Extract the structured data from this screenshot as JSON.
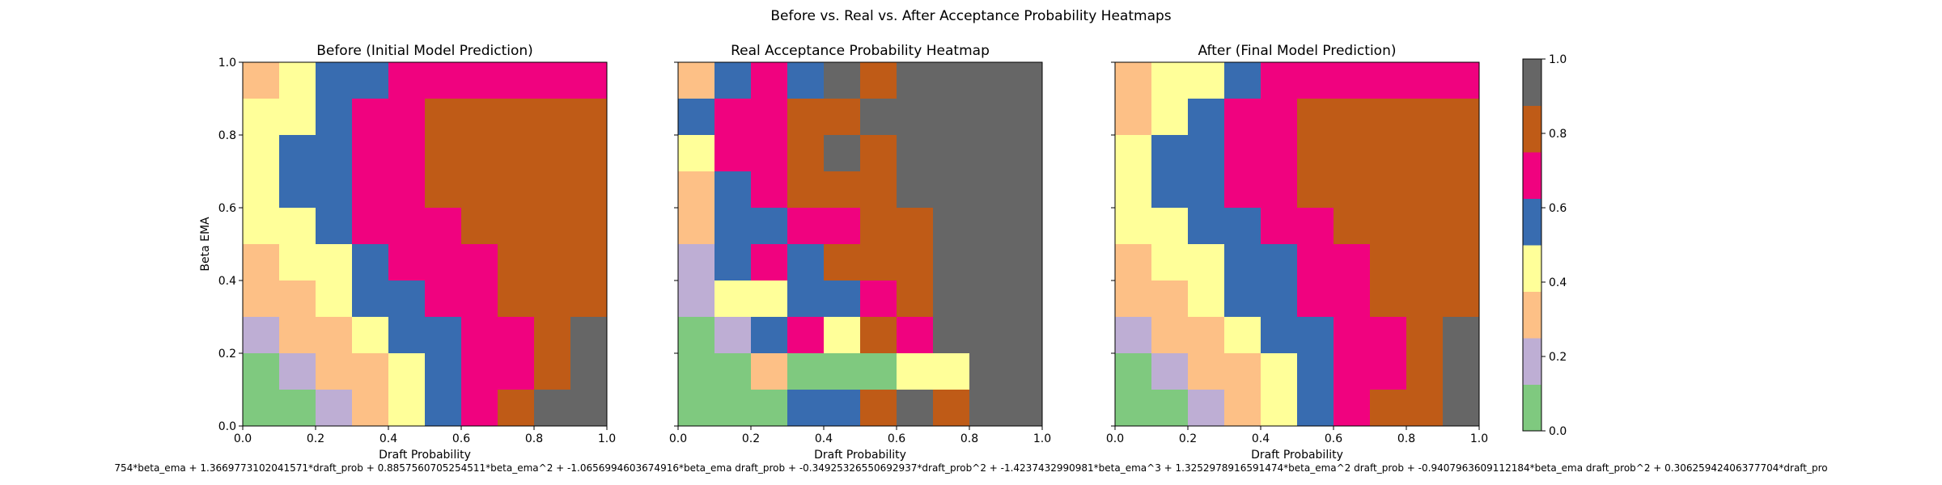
{
  "suptitle": "Before vs. Real vs. After Acceptance Probability Heatmaps",
  "formula_text": "754*beta_ema + 1.3669773102041571*draft_prob + 0.8857560705254511*beta_ema^2 + -1.0656994603674916*beta_ema draft_prob + -0.34925326550692937*draft_prob^2 + -1.4237432990981*beta_ema^3 + 1.3252978916591474*beta_ema^2 draft_prob + -0.9407963609112184*beta_ema draft_prob^2 + 0.30625942406377704*draft_pro",
  "colors": {
    "bins": [
      "#7fc97f",
      "#beaed4",
      "#fdc086",
      "#ffff99",
      "#386cb0",
      "#f0027f",
      "#bf5b17",
      "#666666"
    ]
  },
  "chart_data": [
    {
      "type": "heatmap",
      "title": "Before (Initial Model Prediction)",
      "xlabel": "Draft Probability",
      "ylabel": "Beta EMA",
      "xlim": [
        0.0,
        1.0
      ],
      "ylim": [
        0.0,
        1.0
      ],
      "xticks": [
        "0.0",
        "0.2",
        "0.4",
        "0.6",
        "0.8",
        "1.0"
      ],
      "yticks": [
        "0.0",
        "0.2",
        "0.4",
        "0.6",
        "0.8",
        "1.0"
      ],
      "grid_rows_top_to_bottom": [
        [
          2,
          3,
          4,
          4,
          5,
          5,
          5,
          5,
          5,
          5
        ],
        [
          3,
          3,
          4,
          5,
          5,
          6,
          6,
          6,
          6,
          6
        ],
        [
          3,
          4,
          4,
          5,
          5,
          6,
          6,
          6,
          6,
          6
        ],
        [
          3,
          4,
          4,
          5,
          5,
          6,
          6,
          6,
          6,
          6
        ],
        [
          3,
          3,
          4,
          5,
          5,
          5,
          6,
          6,
          6,
          6
        ],
        [
          2,
          3,
          3,
          4,
          5,
          5,
          5,
          6,
          6,
          6
        ],
        [
          2,
          2,
          3,
          4,
          4,
          5,
          5,
          6,
          6,
          6
        ],
        [
          1,
          2,
          2,
          3,
          4,
          4,
          5,
          5,
          6,
          7
        ],
        [
          0,
          1,
          2,
          2,
          3,
          4,
          5,
          5,
          6,
          7
        ],
        [
          0,
          0,
          1,
          2,
          3,
          4,
          5,
          6,
          7,
          7
        ]
      ]
    },
    {
      "type": "heatmap",
      "title": "Real Acceptance Probability Heatmap",
      "xlabel": "Draft Probability",
      "ylabel": "",
      "xlim": [
        0.0,
        1.0
      ],
      "ylim": [
        0.0,
        1.0
      ],
      "xticks": [
        "0.0",
        "0.2",
        "0.4",
        "0.6",
        "0.8",
        "1.0"
      ],
      "yticks": [
        "",
        "",
        "",
        "",
        "",
        ""
      ],
      "grid_rows_top_to_bottom": [
        [
          2,
          4,
          5,
          4,
          7,
          6,
          7,
          7,
          7,
          7
        ],
        [
          4,
          5,
          5,
          6,
          6,
          7,
          7,
          7,
          7,
          7
        ],
        [
          3,
          5,
          5,
          6,
          7,
          6,
          7,
          7,
          7,
          7
        ],
        [
          2,
          4,
          5,
          6,
          6,
          6,
          7,
          7,
          7,
          7
        ],
        [
          2,
          4,
          4,
          5,
          5,
          6,
          6,
          7,
          7,
          7
        ],
        [
          1,
          4,
          5,
          4,
          6,
          6,
          6,
          7,
          7,
          7
        ],
        [
          1,
          3,
          3,
          4,
          4,
          5,
          6,
          7,
          7,
          7
        ],
        [
          0,
          1,
          4,
          5,
          3,
          6,
          5,
          7,
          7,
          7
        ],
        [
          0,
          0,
          2,
          0,
          0,
          0,
          3,
          3,
          7,
          7
        ],
        [
          0,
          0,
          0,
          4,
          4,
          6,
          7,
          6,
          7,
          7
        ]
      ]
    },
    {
      "type": "heatmap",
      "title": "After (Final Model Prediction)",
      "xlabel": "Draft Probability",
      "ylabel": "",
      "xlim": [
        0.0,
        1.0
      ],
      "ylim": [
        0.0,
        1.0
      ],
      "xticks": [
        "0.0",
        "0.2",
        "0.4",
        "0.6",
        "0.8",
        "1.0"
      ],
      "yticks": [
        "",
        "",
        "",
        "",
        "",
        ""
      ],
      "grid_rows_top_to_bottom": [
        [
          2,
          3,
          3,
          4,
          5,
          5,
          5,
          5,
          5,
          5
        ],
        [
          2,
          3,
          4,
          5,
          5,
          6,
          6,
          6,
          6,
          6
        ],
        [
          3,
          4,
          4,
          5,
          5,
          6,
          6,
          6,
          6,
          6
        ],
        [
          3,
          4,
          4,
          5,
          5,
          6,
          6,
          6,
          6,
          6
        ],
        [
          3,
          3,
          4,
          4,
          5,
          5,
          6,
          6,
          6,
          6
        ],
        [
          2,
          3,
          3,
          4,
          4,
          5,
          5,
          6,
          6,
          6
        ],
        [
          2,
          2,
          3,
          4,
          4,
          5,
          5,
          6,
          6,
          6
        ],
        [
          1,
          2,
          2,
          3,
          4,
          4,
          5,
          5,
          6,
          7
        ],
        [
          0,
          1,
          2,
          2,
          3,
          4,
          5,
          5,
          6,
          7
        ],
        [
          0,
          0,
          1,
          2,
          3,
          4,
          5,
          6,
          6,
          7
        ]
      ]
    }
  ],
  "colorbar": {
    "type": "colorbar",
    "range": [
      0.0,
      1.0
    ],
    "ticks": [
      "0.0",
      "0.2",
      "0.4",
      "0.6",
      "0.8",
      "1.0"
    ],
    "boundaries": [
      0.0,
      0.125,
      0.25,
      0.375,
      0.5,
      0.625,
      0.75,
      0.875,
      1.0
    ]
  }
}
